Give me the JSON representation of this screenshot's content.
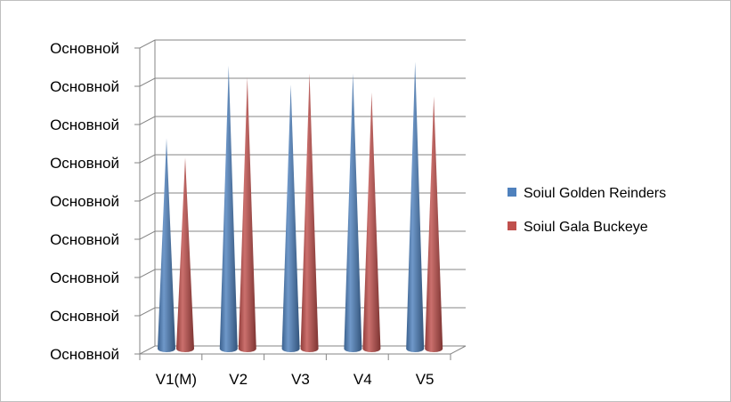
{
  "chart_data": {
    "type": "bar",
    "shape": "3d-cone",
    "categories": [
      "V1(M)",
      "V2",
      "V3",
      "V4",
      "V5"
    ],
    "series": [
      {
        "name": "Soiul Golden Reinders",
        "color": "#4F81BD",
        "values": [
          5.5,
          7.4,
          6.9,
          7.2,
          7.5
        ]
      },
      {
        "name": "Soiul Gala Buckeye",
        "color": "#C0504D",
        "values": [
          5.0,
          7.1,
          7.2,
          6.7,
          6.6
        ]
      }
    ],
    "ylim": [
      0,
      8
    ],
    "y_tick_labels": [
      "Основной",
      "Основной",
      "Основной",
      "Основной",
      "Основной",
      "Основной",
      "Основной",
      "Основной",
      "Основной"
    ],
    "grid": true,
    "legend_position": "right",
    "title": "",
    "xlabel": "",
    "ylabel": ""
  }
}
